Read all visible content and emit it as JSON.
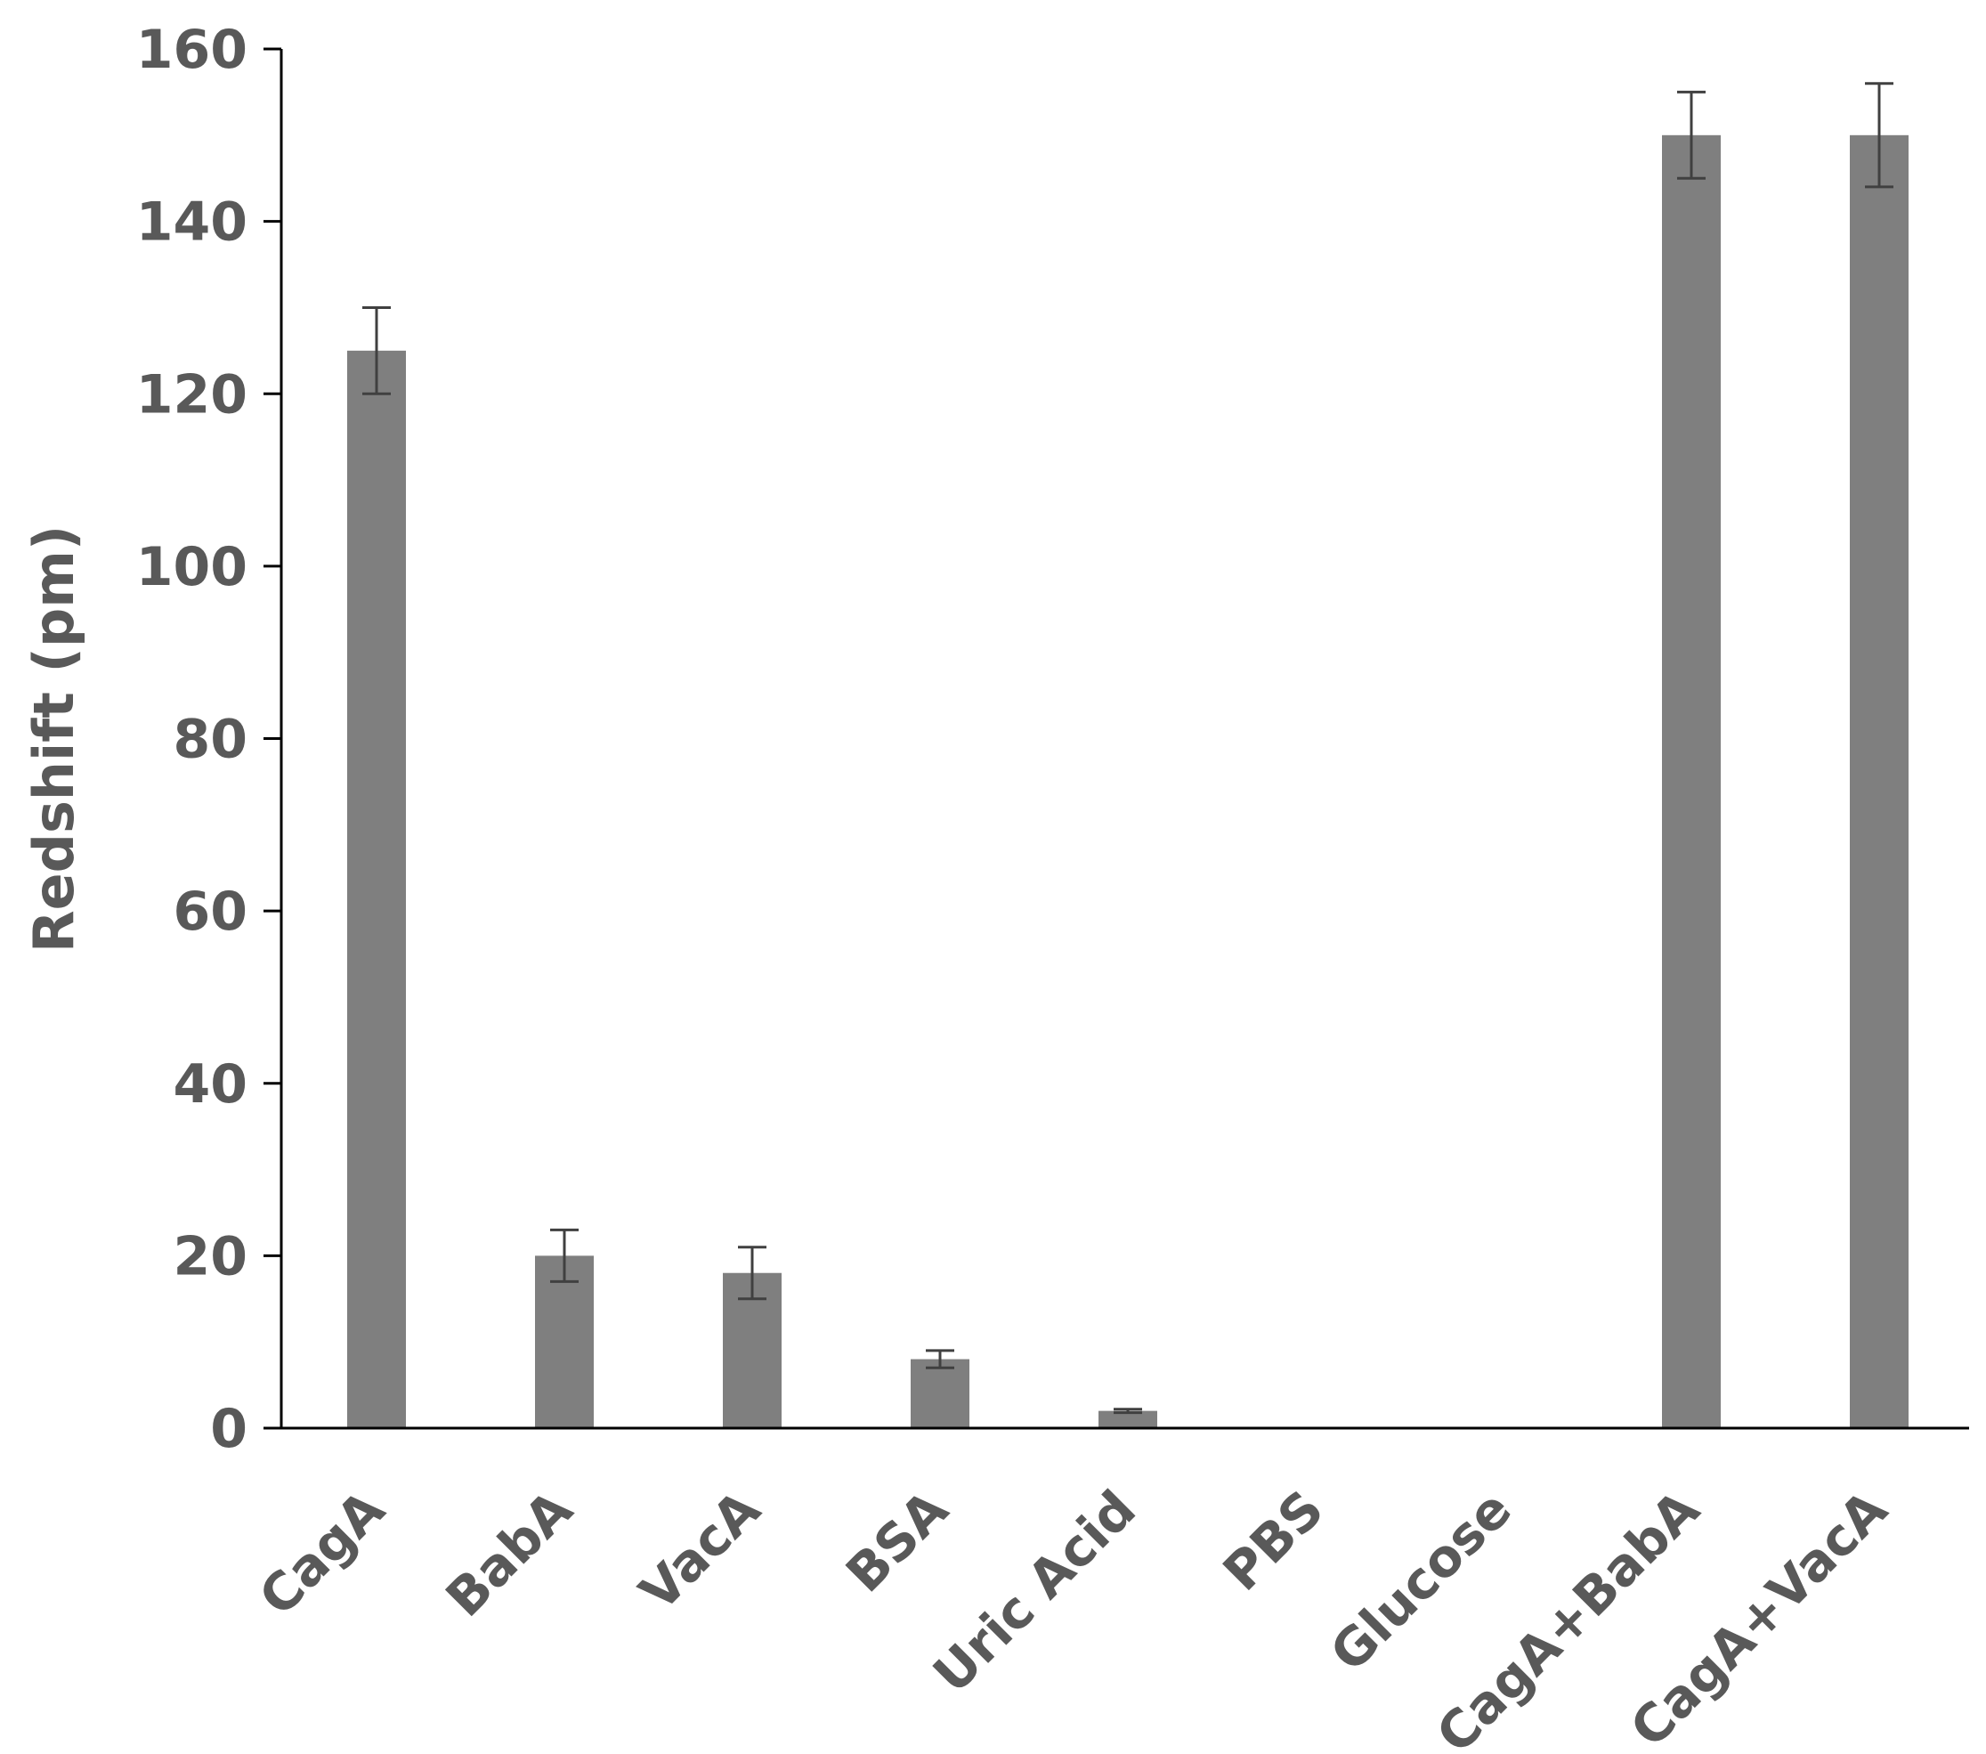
{
  "chart_data": {
    "type": "bar",
    "title": "",
    "xlabel": "",
    "ylabel": "Redshift (pm)",
    "ylim": [
      0,
      160
    ],
    "yticks": [
      0,
      20,
      40,
      60,
      80,
      100,
      120,
      140,
      160
    ],
    "categories": [
      "CagA",
      "BabA",
      "VacA",
      "BSA",
      "Uric Acid",
      "PBS",
      "Glucose",
      "CagA+BabA",
      "CagA+VacA"
    ],
    "values": [
      125,
      20,
      18,
      8,
      2,
      0,
      0,
      150,
      150
    ],
    "errors": [
      5,
      3,
      3,
      1,
      0.2,
      0,
      0,
      5,
      6
    ],
    "bar_color": "#7f7f7f",
    "error_color": "#404040",
    "axis_color": "#000000",
    "grid": false,
    "legend": "none"
  }
}
